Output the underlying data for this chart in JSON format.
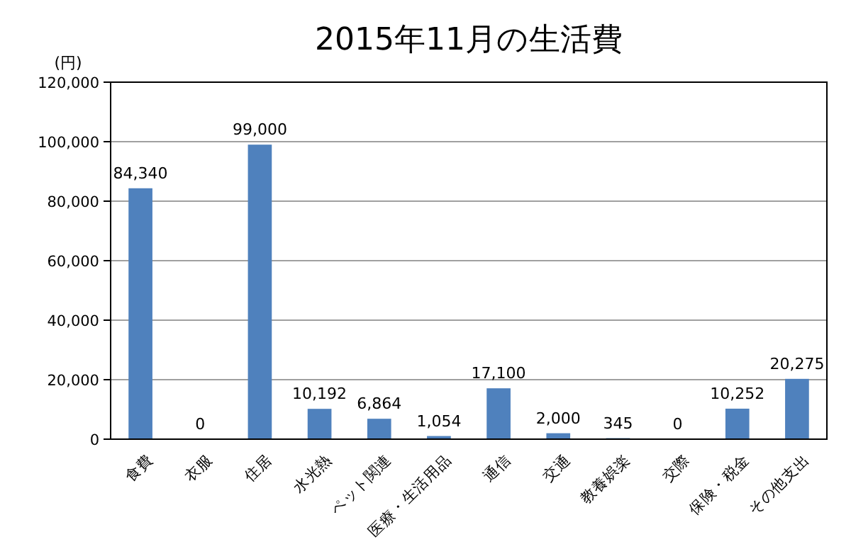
{
  "chart_data": {
    "type": "bar",
    "title": "2015年11月の生活費",
    "ylabel": "(円)",
    "categories": [
      "食費",
      "衣服",
      "住居",
      "水光熱",
      "ペット関連",
      "医療・生活用品",
      "通信",
      "交通",
      "教養娯楽",
      "交際",
      "保険・税金",
      "その他支出"
    ],
    "values": [
      84340,
      0,
      99000,
      10192,
      6864,
      1054,
      17100,
      2000,
      345,
      0,
      10252,
      20275
    ],
    "value_labels": [
      "84,340",
      "0",
      "99,000",
      "10,192",
      "6,864",
      "1,054",
      "17,100",
      "2,000",
      "345",
      "0",
      "10,252",
      "20,275"
    ],
    "color": "#4f81bd",
    "ylim": [
      0,
      120000
    ],
    "yticks": [
      {
        "value": 0,
        "label": "0"
      },
      {
        "value": 20000,
        "label": "20,000"
      },
      {
        "value": 40000,
        "label": "40,000"
      },
      {
        "value": 60000,
        "label": "60,000"
      },
      {
        "value": 80000,
        "label": "80,000"
      },
      {
        "value": 100000,
        "label": "100,000"
      },
      {
        "value": 120000,
        "label": "120,000"
      }
    ],
    "grid": "y"
  }
}
